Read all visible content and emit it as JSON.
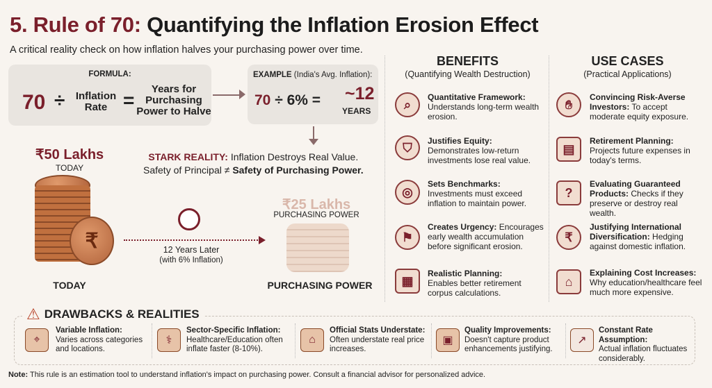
{
  "header": {
    "title_num": "5. Rule of 70:",
    "title_rest": "Quantifying the Inflation Erosion Effect",
    "subtitle": "A critical reality check on how inflation halves your purchasing power over time."
  },
  "formula": {
    "label": "FORMULA:",
    "seventy": "70",
    "divide": "÷",
    "rate": "Inflation Rate",
    "equals": "=",
    "result": "Years for Purchasing Power to Halve"
  },
  "example": {
    "label_bold": "EXAMPLE",
    "label_rest": "(India's Avg. Inflation):",
    "expr_num": "70",
    "expr_rest": "÷ 6% =",
    "result": "~12",
    "result_unit": "YEARS"
  },
  "stark": {
    "bold": "STARK REALITY:",
    "line1": "Inflation Destroys Real Value.",
    "line2a": "Safety of Principal ≠",
    "line2b": "Safety of Purchasing Power."
  },
  "illustration": {
    "amount_today": "₹50 Lakhs",
    "today_small": "TODAY",
    "today_label": "TODAY",
    "later": "12 Years Later",
    "later_note": "(with 6% Inflation)",
    "amount_later": "₹25 Lakhs",
    "pp_small": "PURCHASING POWER",
    "pp_label": "PURCHASING POWER",
    "rupee": "₹"
  },
  "benefits": {
    "title": "BENEFITS",
    "subtitle": "(Quantifying Wealth Destruction)",
    "items": [
      {
        "icon": "magnifier-chart-icon",
        "title": "Quantitative Framework:",
        "text": "Understands long-term wealth erosion."
      },
      {
        "icon": "broken-shield-icon",
        "title": "Justifies Equity:",
        "text": "Demonstrates low-return investments lose real value."
      },
      {
        "icon": "target-icon",
        "title": "Sets Benchmarks:",
        "text": "Investments must exceed inflation to maintain power."
      },
      {
        "icon": "revolver-icon",
        "title": "Creates Urgency:",
        "text": "Encourages early wealth accumulation before significant erosion."
      },
      {
        "icon": "calculator-house-icon",
        "title": "Realistic Planning:",
        "text": "Enables better retirement corpus calculations."
      }
    ]
  },
  "use_cases": {
    "title": "USE CASES",
    "subtitle": "(Practical Applications)",
    "items": [
      {
        "icon": "handshake-icon",
        "title": "Convincing Risk-Averse Investors:",
        "text": "To accept moderate equity exposure."
      },
      {
        "icon": "calendar-icon",
        "title": "Retirement Planning:",
        "text": "Projects future expenses in today's terms."
      },
      {
        "icon": "safe-icon",
        "title": "Evaluating Guaranteed Products:",
        "text": "Checks if they preserve or destroy real wealth."
      },
      {
        "icon": "globe-icon",
        "title": "Justifying International Diversification:",
        "text": "Hedging against domestic inflation."
      },
      {
        "icon": "school-icon",
        "title": "Explaining Cost Increases:",
        "text": "Why education/healthcare feel much more expensive."
      }
    ]
  },
  "drawbacks": {
    "title": "DRAWBACKS & REALITIES",
    "items": [
      {
        "icon": "map-pin-icon",
        "title": "Variable Inflation:",
        "text": "Varies across categories and locations."
      },
      {
        "icon": "stethoscope-icon",
        "title": "Sector-Specific Inflation:",
        "text": "Healthcare/Education often inflate faster (8-10%)."
      },
      {
        "icon": "government-building-icon",
        "title": "Official Stats Understate:",
        "text": "Often understate real price increases."
      },
      {
        "icon": "package-icon",
        "title": "Quality Improvements:",
        "text": "Doesn't capture product enhancements justifying."
      },
      {
        "icon": "trend-chart-icon",
        "title": "Constant Rate Assumption:",
        "text": "Actual inflation fluctuates considerably."
      }
    ]
  },
  "note": {
    "bold": "Note:",
    "text": "This rule is an estimation tool to understand inflation's impact on purchasing power. Consult a financial advisor for personalized advice."
  },
  "colors": {
    "accent": "#7a1f2b",
    "background": "#f8f4ef",
    "panel": "#e9e5e0"
  }
}
